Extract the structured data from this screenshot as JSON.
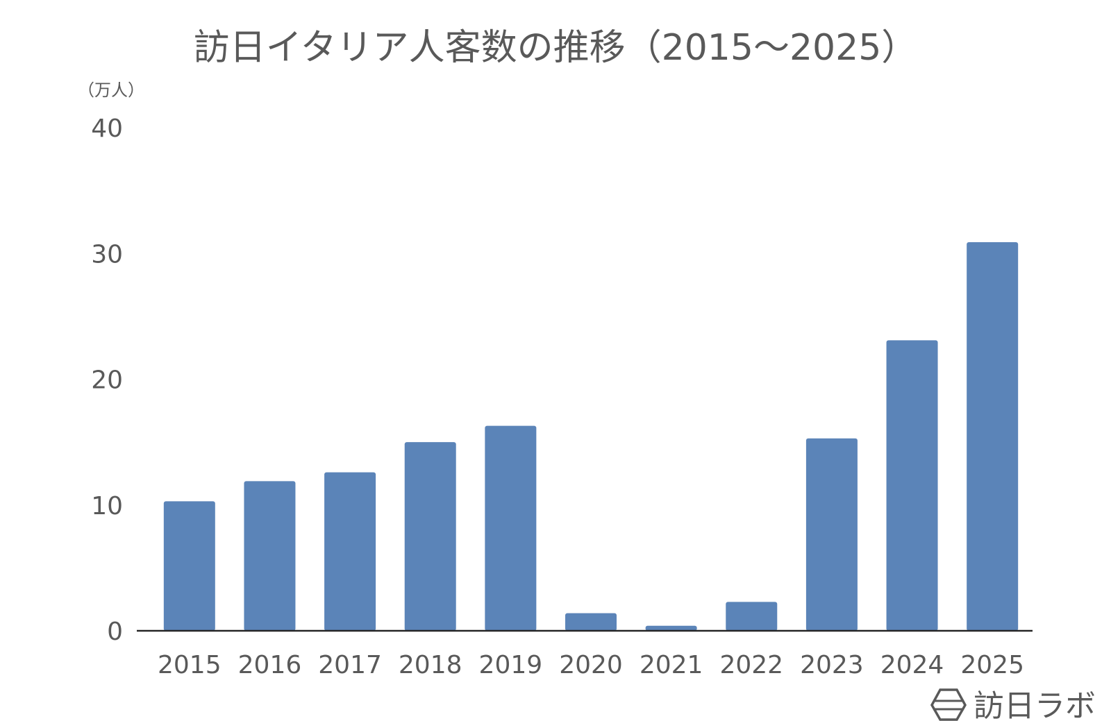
{
  "chart_data": {
    "type": "bar",
    "title": "訪日イタリア人客数の推移（2015～2025）",
    "unit_label": "（万人）",
    "categories": [
      "2015",
      "2016",
      "2017",
      "2018",
      "2019",
      "2020",
      "2021",
      "2022",
      "2023",
      "2024",
      "2025"
    ],
    "values": [
      10.3,
      11.9,
      12.6,
      15.0,
      16.3,
      1.4,
      0.4,
      2.3,
      15.3,
      23.1,
      30.9
    ],
    "ylim": [
      0,
      40
    ],
    "yticks": [
      "0",
      "10",
      "20",
      "30",
      "40"
    ],
    "grid": false,
    "bar_color": "#5b84b8"
  },
  "brand": {
    "name": "訪日ラボ",
    "logo_icon": "hexagon-logo-icon"
  }
}
